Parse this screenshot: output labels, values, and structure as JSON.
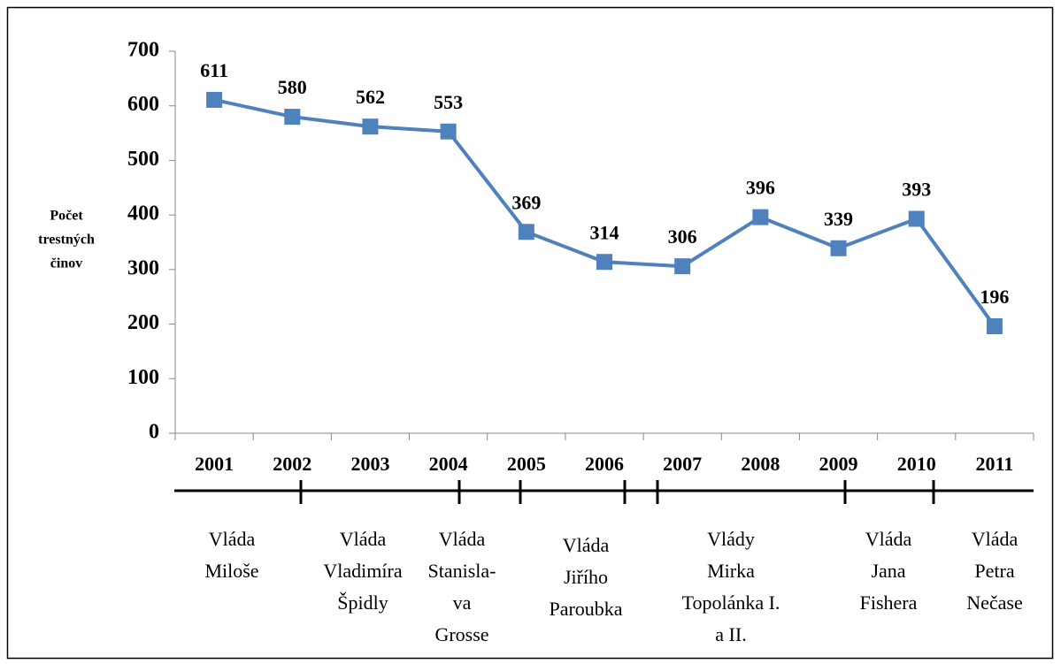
{
  "chart_data": {
    "type": "line",
    "y_axis_label": [
      "Počet",
      "trestných",
      "činov"
    ],
    "categories": [
      "2001",
      "2002",
      "2003",
      "2004",
      "2005",
      "2006",
      "2007",
      "2008",
      "2009",
      "2010",
      "2011"
    ],
    "values": [
      611,
      580,
      562,
      553,
      369,
      314,
      306,
      396,
      339,
      393,
      196
    ],
    "color": "#4f81bd",
    "ylim": [
      0,
      700
    ],
    "yticks": [
      0,
      100,
      200,
      300,
      400,
      500,
      600,
      700
    ],
    "grid": false,
    "governments": [
      {
        "lines": [
          "Vláda",
          "Miloše"
        ]
      },
      {
        "lines": [
          "Vláda",
          "Vladimíra",
          "Špidly"
        ]
      },
      {
        "lines": [
          "Vláda",
          "Stanisla-",
          "va",
          "Grosse"
        ]
      },
      {
        "lines": [
          "Vláda",
          "Jiřího",
          "Paroubka"
        ]
      },
      {
        "lines": [
          "Vlády",
          "Mirka",
          "Topolánka I.",
          "a II."
        ]
      },
      {
        "lines": [
          "Vláda",
          "Jana",
          "Fishera"
        ]
      },
      {
        "lines": [
          "Vláda",
          "Petra",
          "Nečase"
        ]
      }
    ]
  }
}
